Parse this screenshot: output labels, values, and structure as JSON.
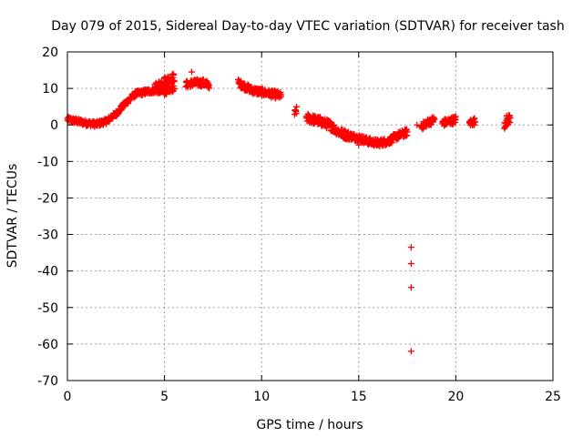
{
  "chart_data": {
    "type": "scatter",
    "title": "Day 079 of 2015, Sidereal Day-to-day VTEC variation (SDTVAR) for receiver tash",
    "xlabel": "GPS time / hours",
    "ylabel": "SDTVAR / TECUs",
    "xlim": [
      0,
      25
    ],
    "ylim": [
      -70,
      20
    ],
    "xticks": [
      0,
      5,
      10,
      15,
      20,
      25
    ],
    "yticks": [
      20,
      10,
      0,
      -10,
      -20,
      -30,
      -40,
      -50,
      -60,
      -70
    ],
    "grid": true,
    "marker": "plus",
    "color": "#ff0000",
    "segments": [
      {
        "x": [
          0.0,
          0.5,
          1.0,
          1.5,
          2.0,
          2.5,
          3.0
        ],
        "y": [
          1.5,
          1.0,
          0.5,
          0.2,
          1.0,
          3.0,
          6.0
        ],
        "spread": 1.5
      },
      {
        "x": [
          3.0,
          3.5,
          4.0,
          4.5,
          5.0,
          5.5
        ],
        "y": [
          6.0,
          8.5,
          9.0,
          9.5,
          9.0,
          10.0
        ],
        "spread": 1.5
      },
      {
        "x": [
          4.5,
          5.0,
          5.5
        ],
        "y": [
          10.0,
          12.0,
          13.0
        ],
        "spread": 2.5
      },
      {
        "x": [
          6.1,
          6.5,
          7.0,
          7.3
        ],
        "y": [
          11.0,
          11.5,
          11.5,
          11.0
        ],
        "spread": 2.0
      },
      {
        "x": [
          8.8,
          9.5,
          10.0,
          10.5,
          11.0
        ],
        "y": [
          11.5,
          9.5,
          9.0,
          8.5,
          8.0
        ],
        "spread": 2.0
      },
      {
        "x": [
          11.7,
          11.8
        ],
        "y": [
          3.0,
          4.0
        ],
        "spread": 2.0
      },
      {
        "x": [
          12.3,
          13.0,
          13.5,
          14.0,
          14.5
        ],
        "y": [
          2.0,
          1.0,
          0.0,
          -2.0,
          -3.0
        ],
        "spread": 2.5
      },
      {
        "x": [
          14.5,
          15.0,
          15.5,
          16.0,
          16.5,
          17.0,
          17.5
        ],
        "y": [
          -3.0,
          -3.5,
          -4.5,
          -5.0,
          -4.5,
          -3.0,
          -2.0
        ],
        "spread": 2.0
      },
      {
        "x": [
          18.2,
          18.5,
          18.9
        ],
        "y": [
          -0.5,
          0.5,
          1.5
        ],
        "spread": 2.0
      },
      {
        "x": [
          19.3,
          19.7,
          20.0
        ],
        "y": [
          0.5,
          1.0,
          1.5
        ],
        "spread": 2.0
      },
      {
        "x": [
          20.7,
          21.0
        ],
        "y": [
          0.5,
          1.0
        ],
        "spread": 2.0
      },
      {
        "x": [
          22.5,
          22.8
        ],
        "y": [
          0.5,
          2.0
        ],
        "spread": 3.0
      }
    ],
    "outliers": [
      {
        "x": 15.0,
        "y": -5.5
      },
      {
        "x": 17.7,
        "y": -33.5
      },
      {
        "x": 17.7,
        "y": -38.0
      },
      {
        "x": 17.7,
        "y": -44.5
      },
      {
        "x": 17.7,
        "y": -62.0
      },
      {
        "x": 18.0,
        "y": 0.0
      },
      {
        "x": 6.4,
        "y": 14.5
      }
    ]
  }
}
